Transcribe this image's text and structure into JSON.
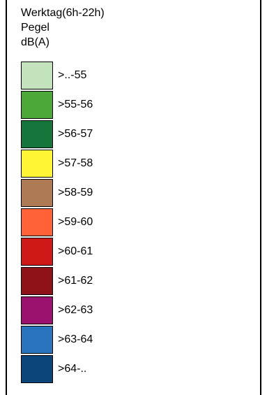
{
  "legend": {
    "title_line1": "Werktag(6h-22h)",
    "title_line2": "Pegel",
    "title_line3": "dB(A)",
    "items": [
      {
        "label": ">..-55",
        "color": "#c2e3bb"
      },
      {
        "label": ">55-56",
        "color": "#4ca838"
      },
      {
        "label": ">56-57",
        "color": "#16753a"
      },
      {
        "label": ">57-58",
        "color": "#fff534"
      },
      {
        "label": ">58-59",
        "color": "#ad7a54"
      },
      {
        "label": ">59-60",
        "color": "#ff6236"
      },
      {
        "label": ">60-61",
        "color": "#cf1919"
      },
      {
        "label": ">61-62",
        "color": "#8f1218"
      },
      {
        "label": ">62-63",
        "color": "#9b116e"
      },
      {
        "label": ">63-64",
        "color": "#2a74bd"
      },
      {
        "label": ">64-..",
        "color": "#0b4579"
      }
    ]
  }
}
